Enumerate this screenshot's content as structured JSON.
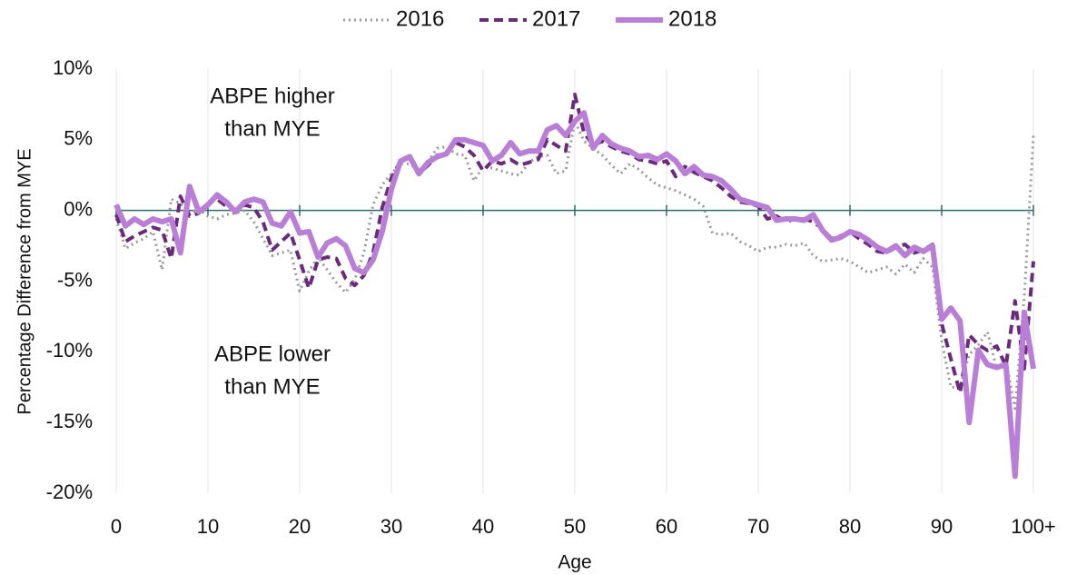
{
  "chart_data": {
    "type": "line",
    "ylabel": "Percentage Difference from MYE",
    "xlabel": "Age",
    "annotations": [
      {
        "lines": [
          "ABPE higher",
          "than MYE"
        ]
      },
      {
        "lines": [
          "ABPE lower",
          "than MYE"
        ]
      }
    ],
    "x": [
      0,
      1,
      2,
      3,
      4,
      5,
      6,
      7,
      8,
      9,
      10,
      11,
      12,
      13,
      14,
      15,
      16,
      17,
      18,
      19,
      20,
      21,
      22,
      23,
      24,
      25,
      26,
      27,
      28,
      29,
      30,
      31,
      32,
      33,
      34,
      35,
      36,
      37,
      38,
      39,
      40,
      41,
      42,
      43,
      44,
      45,
      46,
      47,
      48,
      49,
      50,
      51,
      52,
      53,
      54,
      55,
      56,
      57,
      58,
      59,
      60,
      61,
      62,
      63,
      64,
      65,
      66,
      67,
      68,
      69,
      70,
      71,
      72,
      73,
      74,
      75,
      76,
      77,
      78,
      79,
      80,
      81,
      82,
      83,
      84,
      85,
      86,
      87,
      88,
      89,
      90,
      91,
      92,
      93,
      94,
      95,
      96,
      97,
      98,
      99,
      100
    ],
    "series": [
      {
        "name": "2016",
        "color": "#999999",
        "style": "dotted",
        "width": 3,
        "values": [
          -0.6,
          -2.7,
          -2.3,
          -2.0,
          -1.5,
          -4.2,
          0.8,
          0.5,
          -0.2,
          0.1,
          -0.4,
          -0.6,
          -0.3,
          -0.2,
          0.0,
          -0.8,
          -2.0,
          -3.2,
          -3.0,
          -2.8,
          -5.7,
          -4.3,
          -3.3,
          -4.2,
          -5.1,
          -5.8,
          -4.9,
          -3.0,
          0.4,
          1.8,
          2.6,
          3.3,
          3.3,
          2.8,
          3.5,
          4.4,
          4.5,
          4.0,
          3.9,
          2.1,
          3.1,
          3.0,
          2.8,
          2.6,
          2.5,
          3.4,
          3.8,
          3.9,
          2.6,
          2.8,
          6.3,
          4.9,
          4.4,
          3.9,
          3.2,
          2.6,
          3.3,
          2.9,
          2.3,
          1.8,
          1.6,
          1.4,
          1.1,
          0.8,
          0.3,
          -1.6,
          -1.7,
          -1.6,
          -2.2,
          -2.5,
          -2.9,
          -2.6,
          -2.6,
          -2.4,
          -2.5,
          -2.3,
          -3.2,
          -3.6,
          -3.5,
          -3.4,
          -3.6,
          -4.0,
          -4.4,
          -4.2,
          -4.0,
          -4.5,
          -3.8,
          -4.4,
          -3.4,
          -4.0,
          -9.2,
          -12.5,
          -12.5,
          -10.2,
          -9.5,
          -8.6,
          -11.2,
          -10.6,
          -14.0,
          -6.2,
          5.3
        ]
      },
      {
        "name": "2017",
        "color": "#6a2b7a",
        "style": "dashed",
        "width": 4,
        "values": [
          -0.3,
          -2.2,
          -1.8,
          -1.5,
          -1.2,
          -1.4,
          -3.4,
          1.0,
          -0.4,
          -0.2,
          0.5,
          0.8,
          0.3,
          0.0,
          0.4,
          0.2,
          -0.8,
          -2.8,
          -2.2,
          -1.6,
          -3.5,
          -5.5,
          -3.5,
          -3.3,
          -3.4,
          -4.8,
          -5.3,
          -4.6,
          -3.0,
          0.2,
          2.3,
          3.5,
          3.7,
          2.6,
          3.2,
          3.9,
          4.0,
          4.8,
          4.5,
          3.9,
          2.8,
          3.5,
          3.3,
          3.6,
          3.2,
          3.4,
          3.6,
          5.0,
          4.6,
          4.2,
          8.2,
          5.5,
          4.6,
          4.9,
          4.5,
          4.2,
          4.0,
          3.6,
          3.5,
          3.3,
          3.5,
          2.4,
          3.1,
          2.7,
          2.4,
          2.1,
          1.6,
          1.0,
          0.6,
          0.5,
          0.3,
          -0.6,
          -0.4,
          -0.8,
          -0.6,
          -0.6,
          -0.8,
          -1.3,
          -2.0,
          -1.8,
          -1.5,
          -2.0,
          -2.4,
          -2.9,
          -3.0,
          -2.6,
          -2.4,
          -3.0,
          -2.8,
          -2.4,
          -8.0,
          -10.5,
          -12.9,
          -8.8,
          -9.5,
          -9.9,
          -9.6,
          -11.0,
          -6.4,
          -11.2,
          -3.6
        ]
      },
      {
        "name": "2018",
        "color": "#b97fd6",
        "style": "solid",
        "width": 6,
        "values": [
          0.4,
          -1.1,
          -0.6,
          -1.0,
          -0.6,
          -0.8,
          -0.6,
          -3.0,
          1.7,
          -0.1,
          0.4,
          1.1,
          0.6,
          -0.1,
          0.6,
          0.8,
          0.6,
          -0.9,
          -1.1,
          -0.1,
          -1.6,
          -1.5,
          -3.3,
          -2.3,
          -2.0,
          -2.5,
          -4.1,
          -4.4,
          -3.5,
          -1.5,
          1.5,
          3.5,
          3.8,
          2.6,
          3.4,
          3.8,
          4.0,
          5.0,
          5.0,
          4.8,
          4.6,
          3.5,
          3.9,
          4.8,
          4.0,
          4.2,
          4.2,
          5.7,
          6.0,
          5.3,
          6.3,
          6.9,
          4.4,
          5.3,
          4.7,
          4.4,
          4.2,
          3.8,
          3.9,
          3.6,
          4.0,
          3.5,
          2.6,
          3.1,
          2.5,
          2.4,
          2.1,
          1.5,
          0.8,
          0.6,
          0.4,
          0.2,
          -0.7,
          -0.6,
          -0.6,
          -0.7,
          -0.3,
          -1.4,
          -2.1,
          -1.9,
          -1.5,
          -1.7,
          -2.1,
          -2.6,
          -2.9,
          -2.5,
          -3.2,
          -2.6,
          -2.9,
          -2.5,
          -7.7,
          -6.9,
          -7.8,
          -15.0,
          -9.9,
          -10.9,
          -11.1,
          -10.9,
          -18.8,
          -7.2,
          -11.2
        ]
      }
    ],
    "xlim": [
      0,
      100
    ],
    "xticks": [
      0,
      10,
      20,
      30,
      40,
      50,
      60,
      70,
      80,
      90,
      {
        "value": 100,
        "label": "100+"
      }
    ],
    "ylim": [
      -20,
      10
    ],
    "yticks": [
      {
        "value": 10,
        "label": "10%"
      },
      {
        "value": 5,
        "label": "5%"
      },
      {
        "value": 0,
        "label": "0%"
      },
      {
        "value": -5,
        "label": "-5%"
      },
      {
        "value": -10,
        "label": "-10%"
      },
      {
        "value": -15,
        "label": "-15%"
      },
      {
        "value": -20,
        "label": "-20%"
      }
    ],
    "xgrid": true,
    "zero_line_color": "#2e6b6b",
    "legend": "top"
  }
}
